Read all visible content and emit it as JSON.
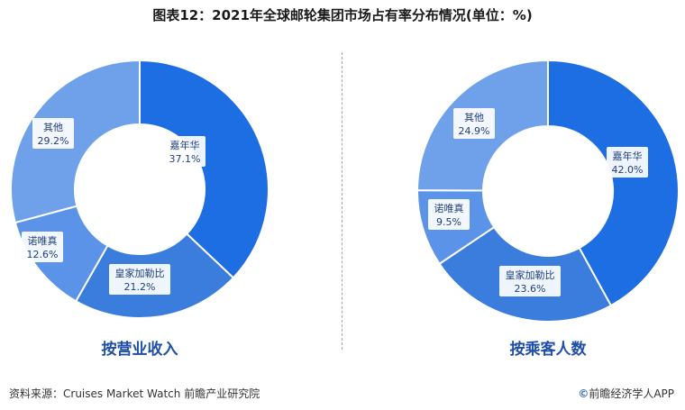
{
  "title": "图表12：2021年全球邮轮集团市场占有率分布情况(单位：%)",
  "source": "资料来源：Cruises Market Watch 前瞻产业研究院",
  "brand": {
    "icon": "©",
    "text": "前瞻经济学人APP"
  },
  "colors": {
    "blue_dark": "#1e6ee3",
    "blue_mid": "#3a7ddc",
    "blue_light": "#5a93e8",
    "blue_lighter": "#6fa1eb"
  },
  "chart_data": [
    {
      "type": "pie",
      "subtype": "donut",
      "title": "按营业收入",
      "slices": [
        {
          "label": "嘉年华",
          "value": 37.1,
          "display": "37.1%"
        },
        {
          "label": "皇家加勒比",
          "value": 21.2,
          "display": "21.2%"
        },
        {
          "label": "诺唯真",
          "value": 12.6,
          "display": "12.6%"
        },
        {
          "label": "其他",
          "value": 29.2,
          "display": "29.2%"
        }
      ]
    },
    {
      "type": "pie",
      "subtype": "donut",
      "title": "按乘客人数",
      "slices": [
        {
          "label": "嘉年华",
          "value": 42.0,
          "display": "42.0%"
        },
        {
          "label": "皇家加勒比",
          "value": 23.6,
          "display": "23.6%"
        },
        {
          "label": "诺唯真",
          "value": 9.5,
          "display": "9.5%"
        },
        {
          "label": "其他",
          "value": 24.9,
          "display": "24.9%"
        }
      ]
    }
  ]
}
